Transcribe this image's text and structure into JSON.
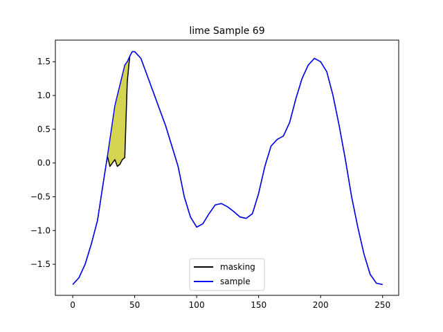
{
  "chart_data": {
    "type": "line",
    "title": "lime Sample 69",
    "xlabel": "",
    "ylabel": "",
    "xlim": [
      -14,
      263
    ],
    "ylim": [
      -1.96,
      1.82
    ],
    "x_ticks": [
      0,
      50,
      100,
      150,
      200,
      250
    ],
    "x_tick_labels": [
      "0",
      "50",
      "100",
      "150",
      "200",
      "250"
    ],
    "y_ticks": [
      -1.5,
      -1.0,
      -0.5,
      0.0,
      0.5,
      1.0,
      1.5
    ],
    "y_tick_labels": [
      "−1.5",
      "−1.0",
      "−0.5",
      "0.0",
      "0.5",
      "1.0",
      "1.5"
    ],
    "grid": false,
    "legend_position": "bottom-center",
    "fill_color": "#cccc33",
    "series": [
      {
        "name": "masking",
        "color": "#000000",
        "x": [
          0,
          5,
          10,
          15,
          20,
          25,
          28,
          30,
          32,
          34,
          36,
          38,
          40,
          42,
          44,
          46,
          48,
          50,
          55,
          60,
          65,
          70,
          75,
          80,
          85,
          90,
          95,
          100,
          105,
          110,
          115,
          120,
          125,
          130,
          135,
          140,
          145,
          150,
          155,
          160,
          165,
          170,
          175,
          180,
          185,
          190,
          195,
          200,
          205,
          210,
          215,
          220,
          225,
          230,
          235,
          240,
          245,
          250
        ],
        "y": [
          -1.8,
          -1.7,
          -1.5,
          -1.2,
          -0.85,
          -0.25,
          0.1,
          -0.05,
          0.0,
          0.05,
          -0.05,
          -0.02,
          0.05,
          0.08,
          1.2,
          1.58,
          1.65,
          1.65,
          1.55,
          1.3,
          1.05,
          0.8,
          0.55,
          0.25,
          -0.05,
          -0.5,
          -0.8,
          -0.95,
          -0.9,
          -0.75,
          -0.62,
          -0.6,
          -0.65,
          -0.72,
          -0.8,
          -0.82,
          -0.75,
          -0.45,
          -0.05,
          0.25,
          0.35,
          0.4,
          0.6,
          0.95,
          1.25,
          1.45,
          1.55,
          1.5,
          1.35,
          1.0,
          0.55,
          0.05,
          -0.5,
          -0.95,
          -1.35,
          -1.65,
          -1.78,
          -1.8
        ]
      },
      {
        "name": "sample",
        "color": "#0000ff",
        "x": [
          0,
          5,
          10,
          15,
          20,
          25,
          28,
          30,
          32,
          34,
          36,
          38,
          40,
          42,
          44,
          46,
          48,
          50,
          55,
          60,
          65,
          70,
          75,
          80,
          85,
          90,
          95,
          100,
          105,
          110,
          115,
          120,
          125,
          130,
          135,
          140,
          145,
          150,
          155,
          160,
          165,
          170,
          175,
          180,
          185,
          190,
          195,
          200,
          205,
          210,
          215,
          220,
          225,
          230,
          235,
          240,
          245,
          250
        ],
        "y": [
          -1.8,
          -1.7,
          -1.5,
          -1.2,
          -0.85,
          -0.25,
          0.1,
          0.35,
          0.6,
          0.85,
          1.0,
          1.15,
          1.3,
          1.45,
          1.5,
          1.58,
          1.65,
          1.65,
          1.55,
          1.3,
          1.05,
          0.8,
          0.55,
          0.25,
          -0.05,
          -0.5,
          -0.8,
          -0.95,
          -0.9,
          -0.75,
          -0.62,
          -0.6,
          -0.65,
          -0.72,
          -0.8,
          -0.82,
          -0.75,
          -0.45,
          -0.05,
          0.25,
          0.35,
          0.4,
          0.6,
          0.95,
          1.25,
          1.45,
          1.55,
          1.5,
          1.35,
          1.0,
          0.55,
          0.05,
          -0.5,
          -0.95,
          -1.35,
          -1.65,
          -1.78,
          -1.8
        ]
      }
    ]
  }
}
